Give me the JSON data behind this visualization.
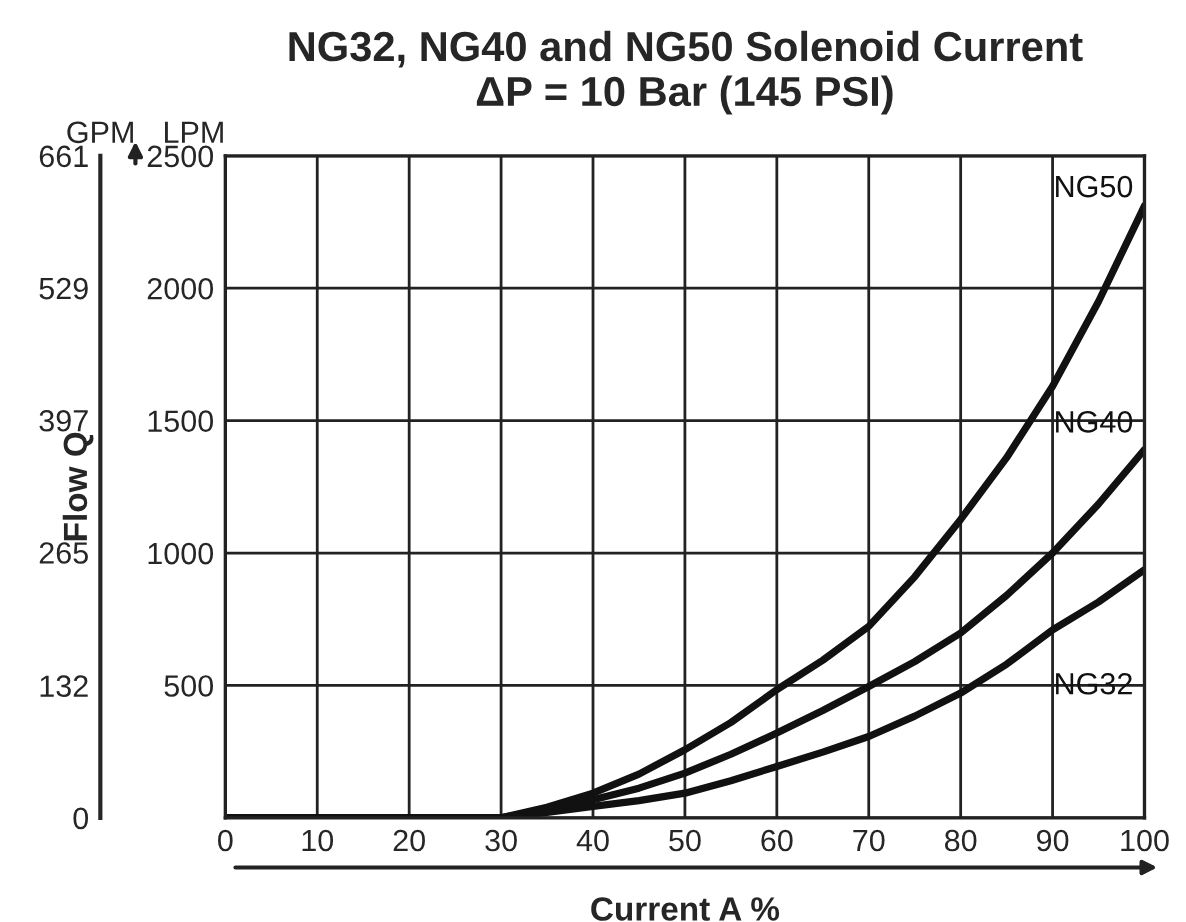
{
  "chart_data": {
    "type": "line",
    "title": "NG32, NG40 and NG50 Solenoid Current\nΔP = 10 Bar (145 PSI)",
    "xlabel": "Current A %",
    "ylabel": "LPM",
    "y2label": "GPM",
    "annotations": [
      "Flow Q"
    ],
    "x": [
      0,
      10,
      20,
      30,
      35,
      40,
      45,
      50,
      55,
      60,
      65,
      70,
      75,
      80,
      85,
      90,
      95,
      100
    ],
    "series": [
      {
        "name": "NG50",
        "color": "#111111",
        "values": [
          0,
          0,
          0,
          0,
          40,
          93,
          165,
          257,
          360,
          484,
          595,
          723,
          910,
          1127,
          1360,
          1630,
          1950,
          2311
        ]
      },
      {
        "name": "NG40",
        "color": "#111111",
        "values": [
          0,
          0,
          0,
          0,
          30,
          68,
          112,
          169,
          240,
          320,
          405,
          496,
          590,
          698,
          840,
          1000,
          1185,
          1391
        ]
      },
      {
        "name": "NG32",
        "color": "#111111",
        "values": [
          0,
          0,
          0,
          0,
          20,
          43,
          65,
          93,
          140,
          194,
          248,
          307,
          384,
          471,
          580,
          710,
          815,
          937
        ]
      }
    ],
    "xlim": [
      0,
      100
    ],
    "xticks": [
      0,
      10,
      20,
      30,
      40,
      50,
      60,
      70,
      80,
      90,
      100
    ],
    "ylim": [
      0,
      2500
    ],
    "yticks": [
      {
        "value": 0,
        "label": null
      },
      500,
      1000,
      1500,
      2000,
      2500
    ],
    "y2lim": [
      0,
      661
    ],
    "y2ticks": [
      0,
      132,
      265,
      397,
      529,
      661
    ],
    "grid": true,
    "legend": false,
    "marker": "none",
    "line_style": "solid"
  }
}
